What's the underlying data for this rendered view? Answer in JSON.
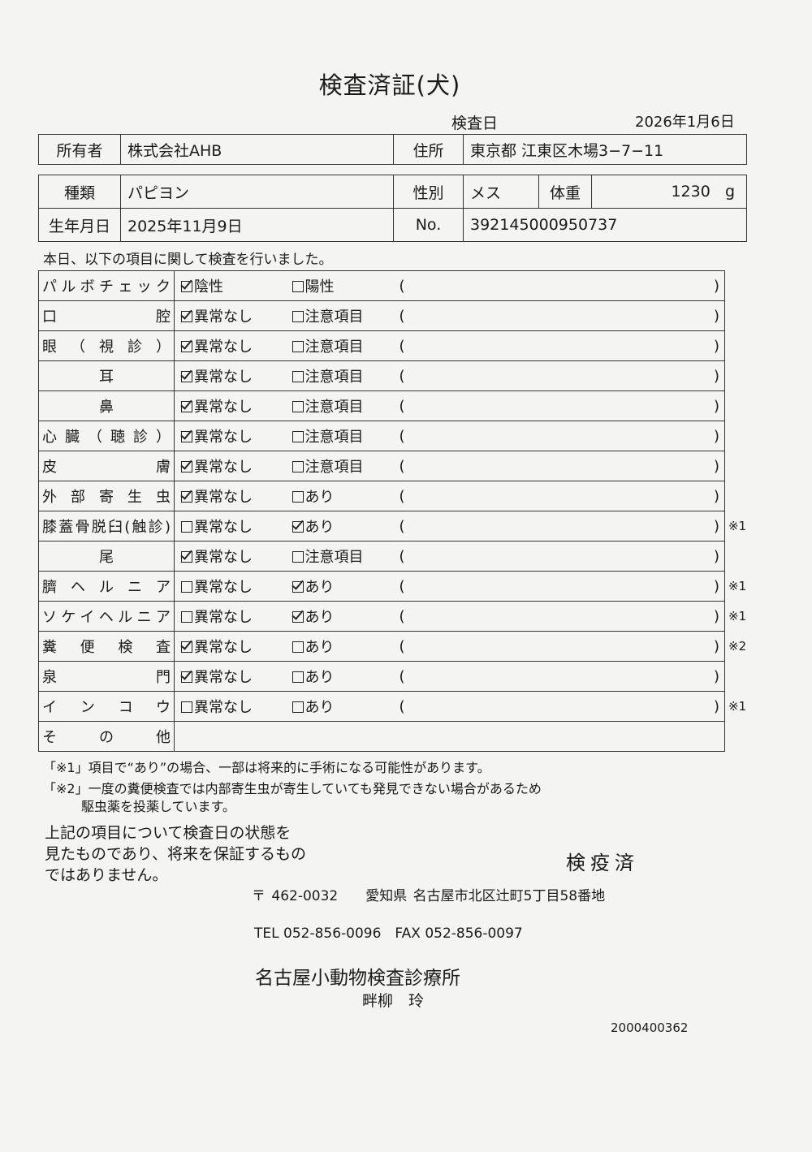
{
  "title": "検査済証(犬)",
  "exam_date": {
    "label": "検査日",
    "value": "2026年1月6日"
  },
  "owner": {
    "label": "所有者",
    "value": "株式会社AHB",
    "address_label": "住所",
    "address": "東京都 江東区木場3−7−11"
  },
  "pet": {
    "breed_label": "種類",
    "breed": "パピヨン",
    "sex_label": "性別",
    "sex": "メス",
    "weight_label": "体重",
    "weight": "1230",
    "weight_unit": "g",
    "dob_label": "生年月日",
    "dob": "2025年11月9日",
    "no_label": "No.",
    "no": "392145000950737"
  },
  "notice": "本日、以下の項目に関して検査を行いました。",
  "checks": [
    {
      "label": "パルボチェック",
      "opt1": "陰性",
      "opt1_checked": true,
      "opt2": "陽性",
      "opt2_checked": false,
      "note": ""
    },
    {
      "label": "口腔",
      "opt1": "異常なし",
      "opt1_checked": true,
      "opt2": "注意項目",
      "opt2_checked": false,
      "note": ""
    },
    {
      "label": "眼（視診）",
      "opt1": "異常なし",
      "opt1_checked": true,
      "opt2": "注意項目",
      "opt2_checked": false,
      "note": ""
    },
    {
      "label": "耳",
      "opt1": "異常なし",
      "opt1_checked": true,
      "opt2": "注意項目",
      "opt2_checked": false,
      "note": "",
      "center": true
    },
    {
      "label": "鼻",
      "opt1": "異常なし",
      "opt1_checked": true,
      "opt2": "注意項目",
      "opt2_checked": false,
      "note": "",
      "center": true
    },
    {
      "label": "心臓（聴診）",
      "opt1": "異常なし",
      "opt1_checked": true,
      "opt2": "注意項目",
      "opt2_checked": false,
      "note": ""
    },
    {
      "label": "皮膚",
      "opt1": "異常なし",
      "opt1_checked": true,
      "opt2": "注意項目",
      "opt2_checked": false,
      "note": ""
    },
    {
      "label": "外部寄生虫",
      "opt1": "異常なし",
      "opt1_checked": true,
      "opt2": "あり",
      "opt2_checked": false,
      "note": ""
    },
    {
      "label": "膝蓋骨脱臼(触診)",
      "opt1": "異常なし",
      "opt1_checked": false,
      "opt2": "あり",
      "opt2_checked": true,
      "note": "※1"
    },
    {
      "label": "尾",
      "opt1": "異常なし",
      "opt1_checked": true,
      "opt2": "注意項目",
      "opt2_checked": false,
      "note": "",
      "center": true
    },
    {
      "label": "臍ヘルニア",
      "opt1": "異常なし",
      "opt1_checked": false,
      "opt2": "あり",
      "opt2_checked": true,
      "note": "※1"
    },
    {
      "label": "ソケイヘルニア",
      "opt1": "異常なし",
      "opt1_checked": false,
      "opt2": "あり",
      "opt2_checked": true,
      "note": "※1"
    },
    {
      "label": "糞便検査",
      "opt1": "異常なし",
      "opt1_checked": true,
      "opt2": "あり",
      "opt2_checked": false,
      "note": "※2"
    },
    {
      "label": "泉門",
      "opt1": "異常なし",
      "opt1_checked": true,
      "opt2": "あり",
      "opt2_checked": false,
      "note": ""
    },
    {
      "label": "インコウ",
      "opt1": "異常なし",
      "opt1_checked": false,
      "opt2": "あり",
      "opt2_checked": false,
      "note": "※1"
    }
  ],
  "other_label": "その他",
  "paren_open": "(",
  "paren_close": ")",
  "footnote1": "「※1」項目で“あり”の場合、一部は将来的に手術になる可能性があります。",
  "footnote2": "「※2」一度の糞便検査では内部寄生虫が寄生していても発見できない場合があるため",
  "footnote2b": "駆虫薬を投薬しています。",
  "disclaimer": [
    "上記の項目について検査日の状態を",
    "見たものであり、将来を保証するもの",
    "ではありません。"
  ],
  "stamp": "検疫済",
  "clinic": {
    "address": "〒 462-0032　　愛知県 名古屋市北区辻町5丁目58番地",
    "tel": "TEL 052-856-0096　FAX 052-856-0097",
    "name": "名古屋小動物検査診療所",
    "vet": "畔柳　玲",
    "code": "2000400362"
  }
}
